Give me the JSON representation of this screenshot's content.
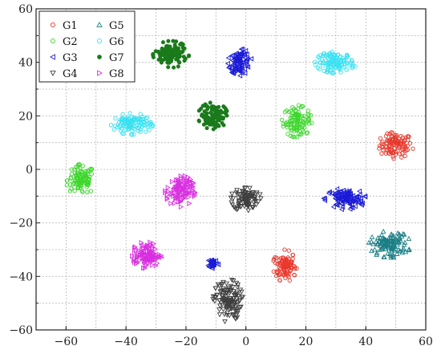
{
  "chart_data": {
    "type": "scatter",
    "title": "",
    "xlabel": "",
    "ylabel": "",
    "xlim": [
      -70,
      60
    ],
    "ylim": [
      -60,
      60
    ],
    "x_ticks": [
      -60,
      -40,
      -20,
      0,
      20,
      40,
      60
    ],
    "y_ticks": [
      -60,
      -40,
      -20,
      0,
      20,
      40,
      60
    ],
    "x_tick_labels": [
      "−60",
      "−40",
      "−20",
      "0",
      "20",
      "40",
      "60"
    ],
    "y_tick_labels": [
      "−60",
      "−40",
      "−20",
      "0",
      "20",
      "40",
      "60"
    ],
    "grid": true,
    "legend_position": "top-left",
    "series": [
      {
        "name": "G1",
        "color": "#e8372b",
        "marker": "circle",
        "clusters": [
          {
            "cx": 50,
            "cy": 9,
            "rx": 6,
            "ry": 5,
            "n": 110
          },
          {
            "cx": 13,
            "cy": -36,
            "rx": 4,
            "ry": 6,
            "n": 100
          }
        ]
      },
      {
        "name": "G2",
        "color": "#3cd62b",
        "marker": "circle",
        "clusters": [
          {
            "cx": 17,
            "cy": 18,
            "rx": 5,
            "ry": 6,
            "n": 110
          },
          {
            "cx": -55,
            "cy": -4,
            "rx": 5,
            "ry": 6,
            "n": 110
          }
        ]
      },
      {
        "name": "G3",
        "color": "#1b1bd6",
        "marker": "triangle-left",
        "clusters": [
          {
            "cx": -2,
            "cy": 40,
            "rx": 4,
            "ry": 5,
            "n": 90
          },
          {
            "cx": 33,
            "cy": -11,
            "rx": 7,
            "ry": 4,
            "n": 110
          },
          {
            "cx": -11,
            "cy": -35,
            "rx": 2,
            "ry": 2,
            "n": 30
          }
        ]
      },
      {
        "name": "G4",
        "color": "#3f3f3f",
        "marker": "triangle-down",
        "clusters": [
          {
            "cx": 0,
            "cy": -11,
            "rx": 5,
            "ry": 5,
            "n": 90
          },
          {
            "cx": -6,
            "cy": -49,
            "rx": 5,
            "ry": 8,
            "n": 130
          }
        ]
      },
      {
        "name": "G5",
        "color": "#1a7f85",
        "marker": "triangle-up",
        "clusters": [
          {
            "cx": 48,
            "cy": -28,
            "rx": 7,
            "ry": 5,
            "n": 120
          }
        ]
      },
      {
        "name": "G6",
        "color": "#38e1f2",
        "marker": "circle",
        "clusters": [
          {
            "cx": 30,
            "cy": 40,
            "rx": 7,
            "ry": 4,
            "n": 120
          },
          {
            "cx": -38,
            "cy": 17,
            "rx": 7,
            "ry": 4,
            "n": 120
          }
        ]
      },
      {
        "name": "G7",
        "color": "#1b7a1b",
        "marker": "star",
        "clusters": [
          {
            "cx": -25,
            "cy": 43,
            "rx": 6,
            "ry": 5,
            "n": 120
          },
          {
            "cx": -11,
            "cy": 20,
            "rx": 5,
            "ry": 5,
            "n": 100
          }
        ]
      },
      {
        "name": "G8",
        "color": "#d82ee0",
        "marker": "triangle-right",
        "clusters": [
          {
            "cx": -22,
            "cy": -8,
            "rx": 5,
            "ry": 6,
            "n": 110
          },
          {
            "cx": -33,
            "cy": -32,
            "rx": 5,
            "ry": 5,
            "n": 110
          }
        ]
      }
    ]
  }
}
